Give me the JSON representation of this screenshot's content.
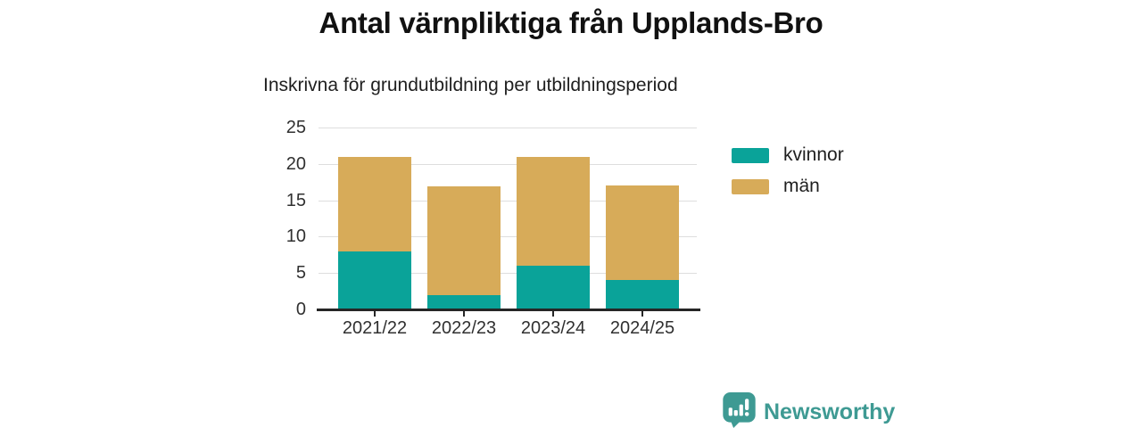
{
  "title": "Antal värnpliktiga från Upplands-Bro",
  "subtitle": "Inskrivna för grundutbildning per utbildningsperiod",
  "colors": {
    "kvinnor": "#0aa399",
    "man": "#d7ab59",
    "grid": "#dedede",
    "axis": "#262626",
    "title_text": "#111111",
    "tick_text": "#303030",
    "brand_teal": "#3e9a93"
  },
  "chart_data": {
    "type": "bar",
    "stacked": true,
    "title": "Antal värnpliktiga från Upplands-Bro",
    "subtitle": "Inskrivna för grundutbildning per utbildningsperiod",
    "categories": [
      "2021/22",
      "2022/23",
      "2023/24",
      "2024/25"
    ],
    "series": [
      {
        "name": "kvinnor",
        "color": "#0aa399",
        "values": [
          8,
          2,
          6,
          4
        ]
      },
      {
        "name": "män",
        "color": "#d7ab59",
        "values": [
          13,
          15,
          15,
          13
        ]
      }
    ],
    "totals": [
      21,
      17,
      21,
      17
    ],
    "xlabel": "",
    "ylabel": "",
    "ylim": [
      0,
      25
    ],
    "yticks": [
      0,
      5,
      10,
      15,
      20,
      25
    ],
    "grid": true,
    "legend_position": "right"
  },
  "legend": {
    "items": [
      {
        "label": "kvinnor",
        "color": "#0aa399"
      },
      {
        "label": "män",
        "color": "#d7ab59"
      }
    ]
  },
  "footer": {
    "brand": "Newsworthy",
    "logo_icon": "bar-chart-speech-bubble-icon"
  }
}
